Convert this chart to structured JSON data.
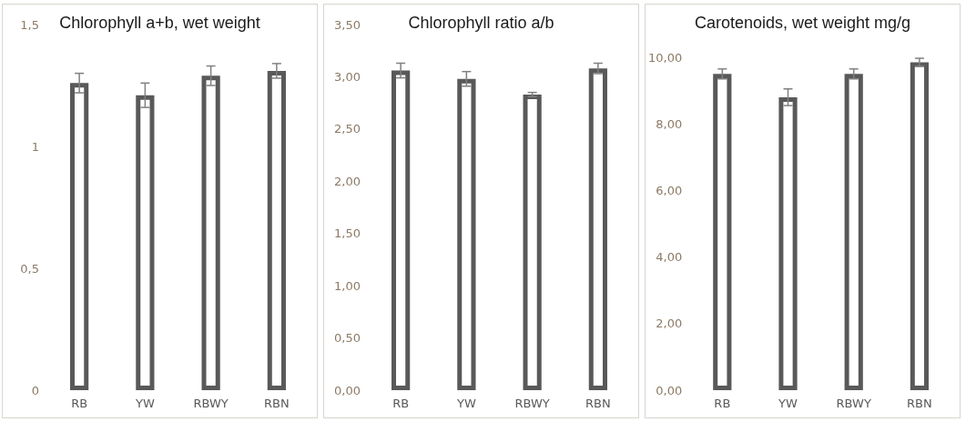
{
  "chart_data": [
    {
      "type": "bar",
      "title": "Chlorophyll a+b, wet weight",
      "categories": [
        "RB",
        "YW",
        "RBWY",
        "RBN"
      ],
      "values": [
        1.26,
        1.21,
        1.29,
        1.31
      ],
      "errors": [
        0.04,
        0.05,
        0.04,
        0.03
      ],
      "color": "#595959",
      "ylim": [
        0,
        1.5
      ],
      "yticks": [
        {
          "value": 0,
          "label": "0"
        },
        {
          "value": 0.5,
          "label": "0,5"
        },
        {
          "value": 1,
          "label": "1"
        },
        {
          "value": 1.5,
          "label": "1,5"
        }
      ],
      "grid": false
    },
    {
      "type": "bar",
      "title": "Chlorophyll ratio a/b",
      "categories": [
        "RB",
        "YW",
        "RBWY",
        "RBN"
      ],
      "values": [
        3.06,
        2.98,
        2.83,
        3.08
      ],
      "errors": [
        0.07,
        0.07,
        0.02,
        0.05
      ],
      "color": "#595959",
      "ylim": [
        0,
        3.5
      ],
      "yticks": [
        {
          "value": 0,
          "label": "0,00"
        },
        {
          "value": 0.5,
          "label": "0,50"
        },
        {
          "value": 1,
          "label": "1,00"
        },
        {
          "value": 1.5,
          "label": "1,50"
        },
        {
          "value": 2,
          "label": "2,00"
        },
        {
          "value": 2.5,
          "label": "2,50"
        },
        {
          "value": 3,
          "label": "3,00"
        },
        {
          "value": 3.5,
          "label": "3,50"
        }
      ],
      "grid": false
    },
    {
      "type": "bar",
      "title": "Carotenoids, wet weight mg/g",
      "categories": [
        "RB",
        "YW",
        "RBWY",
        "RBN"
      ],
      "values": [
        9.5,
        8.8,
        9.5,
        9.85
      ],
      "errors": [
        0.15,
        0.25,
        0.15,
        0.12
      ],
      "color": "#595959",
      "ylim": [
        0,
        10
      ],
      "yticks": [
        {
          "value": 0,
          "label": "0,00"
        },
        {
          "value": 2,
          "label": "2,00"
        },
        {
          "value": 4,
          "label": "4,00"
        },
        {
          "value": 6,
          "label": "6,00"
        },
        {
          "value": 8,
          "label": "8,00"
        },
        {
          "value": 10,
          "label": "10,00"
        }
      ],
      "grid": false
    }
  ]
}
